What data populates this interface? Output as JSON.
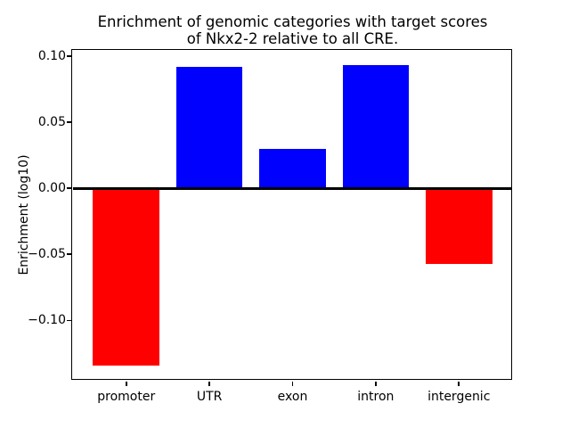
{
  "chart_data": {
    "type": "bar",
    "title": "Enrichment of genomic categories with target scores\nof Nkx2-2 relative to all CRE.",
    "xlabel": "",
    "ylabel": "Enrichment (log10)",
    "categories": [
      "promoter",
      "UTR",
      "exon",
      "intron",
      "intergenic"
    ],
    "values": [
      -0.134,
      0.092,
      0.03,
      0.093,
      -0.057
    ],
    "bar_colors": [
      "#ff0000",
      "#0000ff",
      "#0000ff",
      "#0000ff",
      "#ff0000"
    ],
    "positive_color": "#0000ff",
    "negative_color": "#ff0000",
    "bar_width": 0.8,
    "xlim": [
      -0.64,
      4.64
    ],
    "ylim": [
      -0.145,
      0.104
    ],
    "yticks": [
      {
        "value": 0.1,
        "label": "0.10"
      },
      {
        "value": 0.05,
        "label": "0.05"
      },
      {
        "value": 0.0,
        "label": "0.00"
      },
      {
        "value": -0.05,
        "label": "−0.05"
      },
      {
        "value": -0.1,
        "label": "−0.10"
      }
    ],
    "zero_line": true,
    "grid": false,
    "legend": null,
    "axis_color": "#000000",
    "text_color": "#000000",
    "background_color": "#ffffff"
  }
}
